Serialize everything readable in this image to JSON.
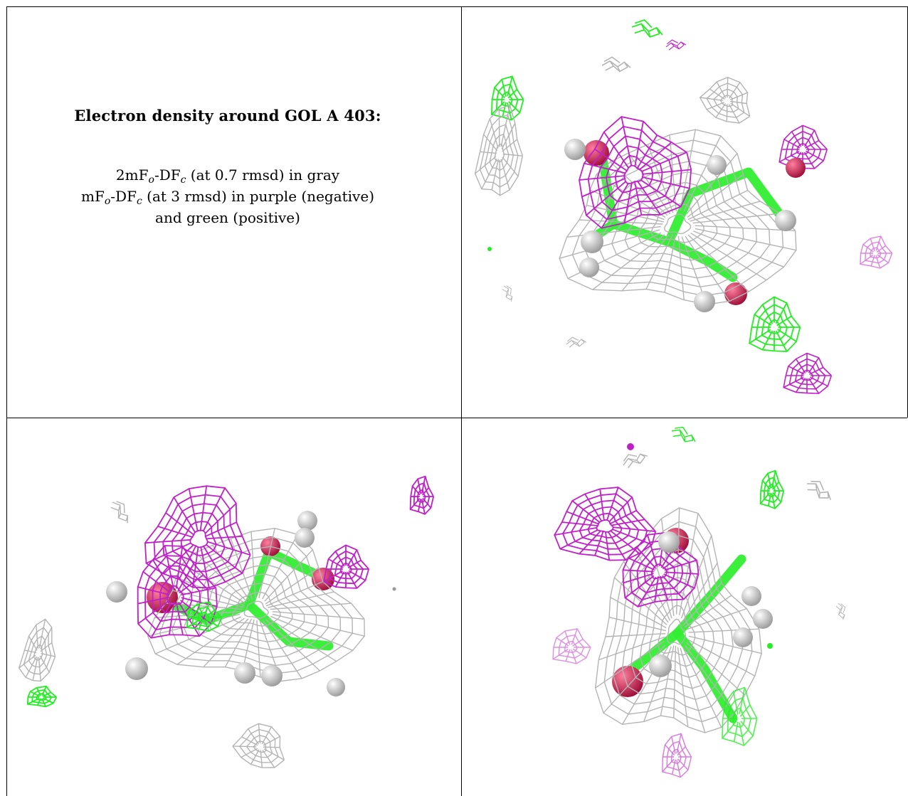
{
  "caption": {
    "title": "Electron density around GOL A 403:",
    "line1": {
      "pre": "2mF",
      "sub1": "o",
      "mid": "-DF",
      "sub2": "c",
      "post": " (at 0.7 rmsd) in gray"
    },
    "line2": {
      "pre": "mF",
      "sub1": "o",
      "mid": "-DF",
      "sub2": "c",
      "post": " (at 3 rmsd) in purple (negative)"
    },
    "line3": "and green (positive)"
  },
  "colors": {
    "map_2fofc": "#b4b4b4",
    "map_fofc_negative": "#c020c8",
    "map_fofc_positive": "#22ee22",
    "carbon": "#33ee33",
    "oxygen": "#dd2255",
    "hydrogen": "#e6e6e6"
  },
  "panels": [
    {
      "id": "view-1"
    },
    {
      "id": "view-2"
    },
    {
      "id": "view-3"
    }
  ]
}
